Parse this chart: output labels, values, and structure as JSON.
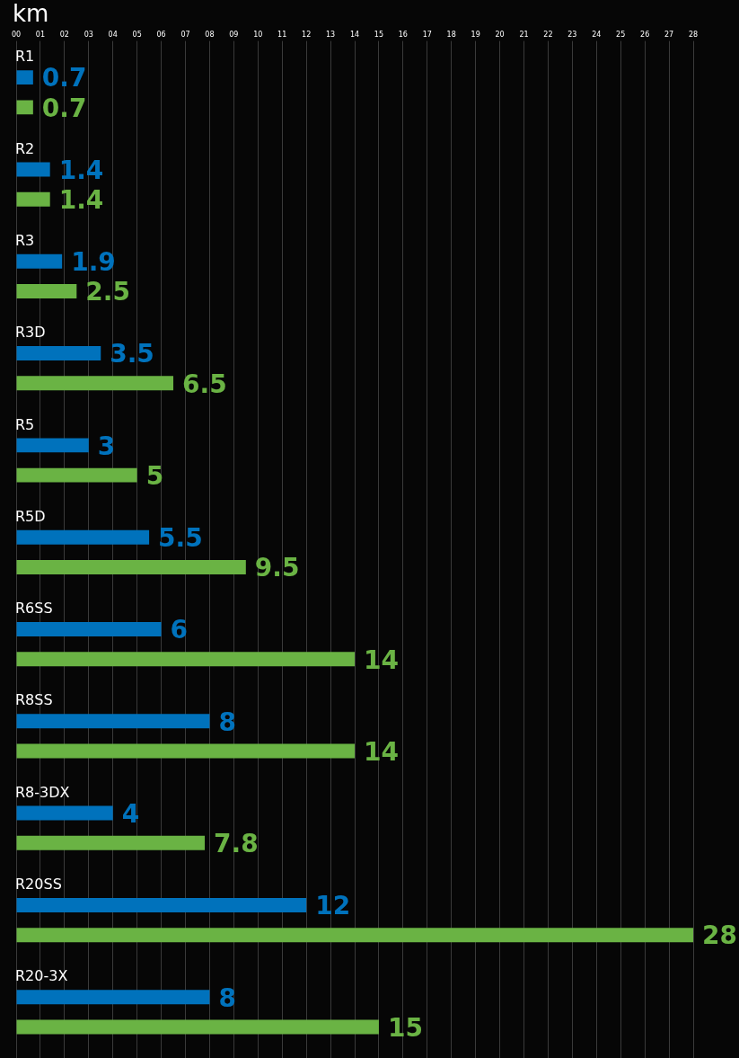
{
  "chart_data": {
    "type": "bar",
    "orientation": "horizontal",
    "xlabel": "km",
    "categories": [
      "R1",
      "R2",
      "R3",
      "R3D",
      "R5",
      "R5D",
      "R6SS",
      "R8SS",
      "R8-3DX",
      "R20SS",
      "R20-3X"
    ],
    "series": [
      {
        "color": "#0072bc",
        "values": [
          0.7,
          1.4,
          1.9,
          3.5,
          3,
          5.5,
          6,
          8,
          4,
          12,
          8
        ]
      },
      {
        "color": "#6ab344",
        "values": [
          0.7,
          1.4,
          2.5,
          6.5,
          5,
          9.5,
          14,
          14,
          7.8,
          28,
          15
        ]
      }
    ],
    "xlim": [
      0,
      28
    ],
    "xticks": [
      {
        "value": 0,
        "label": "00"
      },
      {
        "value": 1,
        "label": "01"
      },
      {
        "value": 2,
        "label": "02"
      },
      {
        "value": 3,
        "label": "03"
      },
      {
        "value": 4,
        "label": "04"
      },
      {
        "value": 5,
        "label": "05"
      },
      {
        "value": 6,
        "label": "06"
      },
      {
        "value": 7,
        "label": "07"
      },
      {
        "value": 8,
        "label": "08"
      },
      {
        "value": 9,
        "label": "09"
      },
      10,
      11,
      12,
      13,
      14,
      15,
      16,
      17,
      18,
      19,
      20,
      21,
      22,
      23,
      24,
      25,
      26,
      27,
      28
    ],
    "grid": "x",
    "legend": false,
    "data_labels": true
  }
}
